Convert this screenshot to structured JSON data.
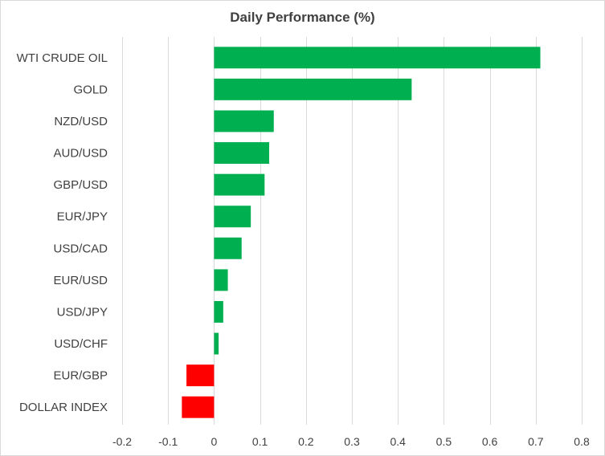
{
  "chart_data": {
    "type": "bar",
    "orientation": "horizontal",
    "title": "Daily Performance  (%)",
    "xlabel": "",
    "ylabel": "",
    "categories": [
      "WTI CRUDE OIL",
      "GOLD",
      "NZD/USD",
      "AUD/USD",
      "GBP/USD",
      "EUR/JPY",
      "USD/CAD",
      "EUR/USD",
      "USD/JPY",
      "USD/CHF",
      "EUR/GBP",
      "DOLLAR INDEX"
    ],
    "values": [
      0.71,
      0.43,
      0.13,
      0.12,
      0.11,
      0.08,
      0.06,
      0.03,
      0.02,
      0.01,
      -0.06,
      -0.07
    ],
    "xlim": [
      -0.2,
      0.8
    ],
    "xticks": [
      -0.2,
      -0.1,
      0,
      0.1,
      0.2,
      0.3,
      0.4,
      0.5,
      0.6,
      0.7,
      0.8
    ],
    "xtick_labels": [
      "-0.2",
      "-0.1",
      "0",
      "0.1",
      "0.2",
      "0.3",
      "0.4",
      "0.5",
      "0.6",
      "0.7",
      "0.8"
    ],
    "grid": "vertical",
    "legend": "none",
    "colors": {
      "positive": "#00b050",
      "negative": "#ff0000",
      "grid": "#d9d9d9",
      "text": "#404040"
    }
  }
}
